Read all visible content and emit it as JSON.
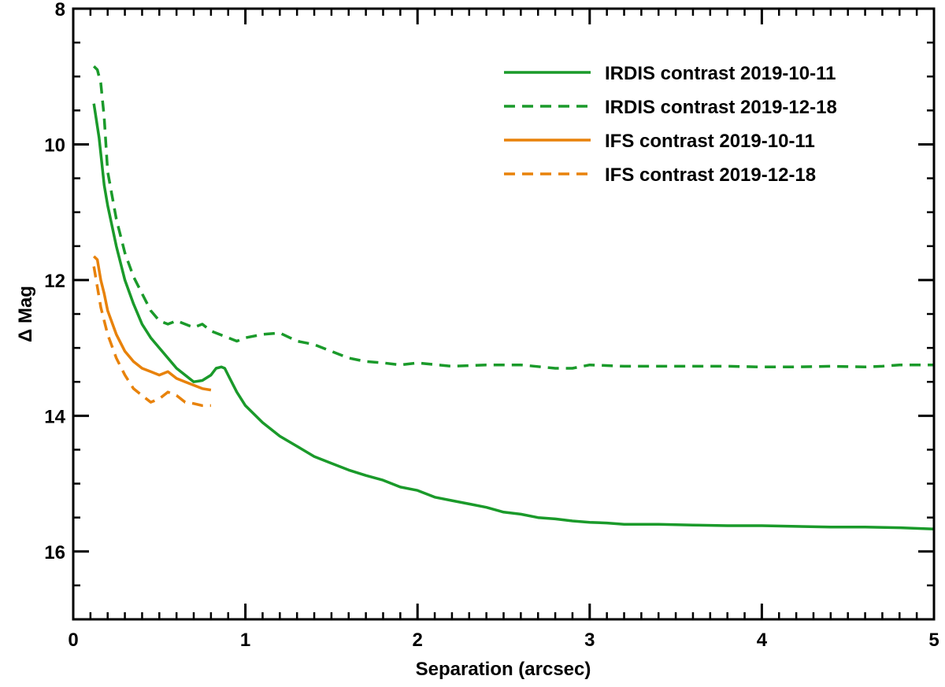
{
  "chart_data": {
    "type": "line",
    "title": "",
    "xlabel": "Separation (arcsec)",
    "ylabel": "Δ Mag",
    "xlim": [
      0,
      5
    ],
    "ylim": [
      17,
      8
    ],
    "y_inverted": true,
    "x_ticks": [
      0,
      1,
      2,
      3,
      4,
      5
    ],
    "x_tick_labels": [
      "0",
      "1",
      "2",
      "3",
      "4",
      "5"
    ],
    "y_ticks": [
      8,
      10,
      12,
      14,
      16
    ],
    "y_tick_labels": [
      "8",
      "10",
      "12",
      "14",
      "16"
    ],
    "grid": false,
    "legend_position": "top-right",
    "series": [
      {
        "name": "IRDIS contrast 2019-10-11",
        "color": "#1a9a2a",
        "dash": "solid",
        "x": [
          0.12,
          0.15,
          0.18,
          0.2,
          0.25,
          0.3,
          0.35,
          0.4,
          0.45,
          0.5,
          0.55,
          0.6,
          0.65,
          0.7,
          0.75,
          0.8,
          0.83,
          0.86,
          0.88,
          0.9,
          0.95,
          1.0,
          1.1,
          1.2,
          1.3,
          1.4,
          1.5,
          1.6,
          1.7,
          1.8,
          1.9,
          2.0,
          2.1,
          2.2,
          2.3,
          2.4,
          2.5,
          2.6,
          2.7,
          2.8,
          2.9,
          3.0,
          3.1,
          3.2,
          3.4,
          3.6,
          3.8,
          4.0,
          4.2,
          4.4,
          4.6,
          4.8,
          5.0
        ],
        "values": [
          9.4,
          9.9,
          10.6,
          10.9,
          11.5,
          12.0,
          12.35,
          12.65,
          12.85,
          13.0,
          13.15,
          13.3,
          13.4,
          13.5,
          13.48,
          13.4,
          13.3,
          13.28,
          13.3,
          13.4,
          13.65,
          13.85,
          14.1,
          14.3,
          14.45,
          14.6,
          14.7,
          14.8,
          14.88,
          14.95,
          15.05,
          15.1,
          15.2,
          15.25,
          15.3,
          15.35,
          15.42,
          15.45,
          15.5,
          15.52,
          15.55,
          15.57,
          15.58,
          15.6,
          15.6,
          15.61,
          15.62,
          15.62,
          15.63,
          15.64,
          15.64,
          15.65,
          15.67
        ]
      },
      {
        "name": "IRDIS contrast 2019-12-18",
        "color": "#1a9a2a",
        "dash": "dashed",
        "x": [
          0.12,
          0.14,
          0.16,
          0.18,
          0.2,
          0.25,
          0.3,
          0.35,
          0.4,
          0.45,
          0.5,
          0.55,
          0.6,
          0.65,
          0.7,
          0.75,
          0.8,
          0.85,
          0.9,
          0.95,
          1.0,
          1.1,
          1.2,
          1.3,
          1.4,
          1.5,
          1.6,
          1.7,
          1.8,
          1.9,
          2.0,
          2.2,
          2.4,
          2.6,
          2.8,
          2.9,
          3.0,
          3.2,
          3.4,
          3.6,
          3.8,
          4.0,
          4.2,
          4.4,
          4.6,
          4.7,
          4.8,
          5.0
        ],
        "values": [
          8.85,
          8.9,
          9.1,
          9.6,
          10.4,
          11.1,
          11.6,
          11.95,
          12.2,
          12.45,
          12.6,
          12.65,
          12.6,
          12.65,
          12.7,
          12.65,
          12.75,
          12.8,
          12.85,
          12.9,
          12.85,
          12.8,
          12.78,
          12.9,
          12.95,
          13.05,
          13.15,
          13.2,
          13.22,
          13.25,
          13.22,
          13.27,
          13.25,
          13.25,
          13.3,
          13.3,
          13.25,
          13.27,
          13.27,
          13.27,
          13.27,
          13.28,
          13.28,
          13.27,
          13.28,
          13.27,
          13.25,
          13.25
        ]
      },
      {
        "name": "IFS contrast 2019-10-11",
        "color": "#e8820a",
        "dash": "solid",
        "x": [
          0.12,
          0.14,
          0.16,
          0.18,
          0.2,
          0.25,
          0.3,
          0.35,
          0.4,
          0.45,
          0.5,
          0.55,
          0.6,
          0.65,
          0.7,
          0.75,
          0.8
        ],
        "values": [
          11.65,
          11.7,
          12.0,
          12.2,
          12.45,
          12.8,
          13.05,
          13.2,
          13.3,
          13.35,
          13.4,
          13.35,
          13.45,
          13.5,
          13.55,
          13.6,
          13.62
        ]
      },
      {
        "name": "IFS contrast 2019-12-18",
        "color": "#e8820a",
        "dash": "dashed",
        "x": [
          0.12,
          0.14,
          0.16,
          0.18,
          0.2,
          0.25,
          0.3,
          0.35,
          0.4,
          0.45,
          0.5,
          0.55,
          0.6,
          0.65,
          0.7,
          0.75,
          0.8
        ],
        "values": [
          11.8,
          12.1,
          12.4,
          12.6,
          12.8,
          13.15,
          13.4,
          13.6,
          13.7,
          13.8,
          13.75,
          13.65,
          13.7,
          13.8,
          13.82,
          13.85,
          13.85
        ]
      }
    ]
  }
}
